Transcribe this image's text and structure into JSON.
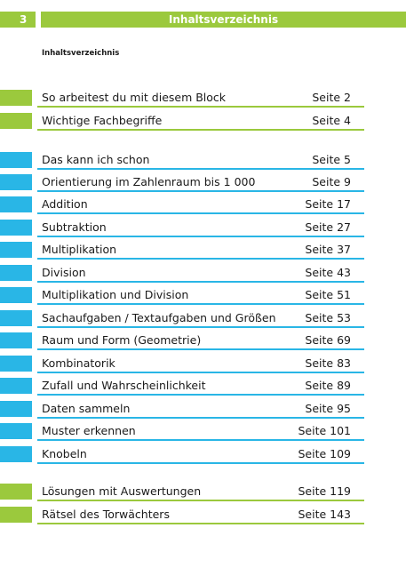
{
  "header": {
    "page_number": "3",
    "title": "Inhaltsverzeichnis"
  },
  "subtitle": "Inhaltsverzeichnis",
  "colors": {
    "green": "#9bc93d",
    "blue": "#29b6e6"
  },
  "toc": [
    {
      "label": "So arbeitest du mit diesem Block",
      "page": "Seite 2",
      "color": "green"
    },
    {
      "label": "Wichtige Fachbegriffe",
      "page": "Seite 4",
      "color": "green"
    },
    {
      "label": "Das kann ich schon",
      "page": "Seite 5",
      "color": "blue"
    },
    {
      "label": "Orientierung im Zahlenraum bis 1 000",
      "page": "Seite 9",
      "color": "blue"
    },
    {
      "label": "Addition",
      "page": "Seite 17",
      "color": "blue"
    },
    {
      "label": "Subtraktion",
      "page": "Seite 27",
      "color": "blue"
    },
    {
      "label": "Multiplikation",
      "page": "Seite 37",
      "color": "blue"
    },
    {
      "label": "Division",
      "page": "Seite 43",
      "color": "blue"
    },
    {
      "label": "Multiplikation und Division",
      "page": "Seite 51",
      "color": "blue"
    },
    {
      "label": "Sachaufgaben / Textaufgaben und Größen",
      "page": "Seite 53",
      "color": "blue"
    },
    {
      "label": "Raum und Form (Geometrie)",
      "page": "Seite 69",
      "color": "blue"
    },
    {
      "label": "Kombinatorik",
      "page": "Seite 83",
      "color": "blue"
    },
    {
      "label": "Zufall und Wahrscheinlichkeit",
      "page": "Seite 89",
      "color": "blue"
    },
    {
      "label": "Daten sammeln",
      "page": "Seite 95",
      "color": "blue"
    },
    {
      "label": "Muster erkennen",
      "page": "Seite 101",
      "color": "blue"
    },
    {
      "label": "Knobeln",
      "page": "Seite 109",
      "color": "blue"
    },
    {
      "label": "Lösungen mit Auswertungen",
      "page": "Seite 119",
      "color": "green"
    },
    {
      "label": "Rätsel des Torwächters",
      "page": "Seite 143",
      "color": "green"
    }
  ]
}
